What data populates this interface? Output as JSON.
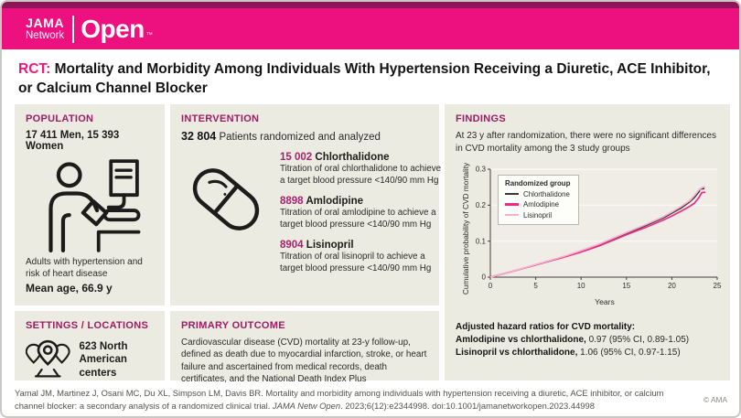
{
  "brand": {
    "jama": "JAMA",
    "network": "Network",
    "open": "Open",
    "tm": "™"
  },
  "title": {
    "tag": "RCT:",
    "text": "Mortality and Morbidity Among Individuals With Hypertension Receiving a Diuretic, ACE Inhibitor, or Calcium Channel Blocker"
  },
  "population": {
    "header": "POPULATION",
    "counts": "17 411 Men, 15 393 Women",
    "description": "Adults with hypertension and risk of heart disease",
    "mean_age": "Mean age, 66.9 y"
  },
  "intervention": {
    "header": "INTERVENTION",
    "total": "32 804",
    "total_label": "Patients randomized and analyzed",
    "drugs": [
      {
        "count": "15 002",
        "name": "Chlorthalidone",
        "description": "Titration of oral chlorthalidone to achieve a target blood pressure <140/90 mm Hg"
      },
      {
        "count": "8898",
        "name": "Amlodipine",
        "description": "Titration of oral amlodipine to achieve a target blood pressure <140/90 mm Hg"
      },
      {
        "count": "8904",
        "name": "Lisinopril",
        "description": "Titration of oral lisinopril to achieve a target blood pressure <140/90 mm Hg"
      }
    ]
  },
  "settings": {
    "header": "SETTINGS / LOCATIONS",
    "text": "623 North American centers"
  },
  "primary_outcome": {
    "header": "PRIMARY OUTCOME",
    "text": "Cardiovascular disease (CVD) mortality at 23-y follow-up, defined as death due to myocardial infarction, stroke, or heart failure and ascertained from medical records, death certificates, and the National Death Index Plus"
  },
  "findings": {
    "header": "FINDINGS",
    "summary": "At 23 y after randomization, there were no significant differences in CVD mortality among the 3 study groups",
    "hazard_heading": "Adjusted hazard ratios for CVD mortality:",
    "hazard_lines": [
      {
        "bold": "Amlodipine vs chlorthalidone,",
        "rest": "0.97 (95% CI, 0.89-1.05)"
      },
      {
        "bold": "Lisinopril vs chlorthalidone,",
        "rest": "1.06 (95% CI, 0.97-1.15)"
      }
    ]
  },
  "chart_data": {
    "type": "line",
    "title": "",
    "xlabel": "Years",
    "ylabel": "Cumulative probability of CVD mortality",
    "xlim": [
      0,
      25
    ],
    "ylim": [
      0,
      0.3
    ],
    "xticks": [
      0,
      5,
      10,
      15,
      20,
      25
    ],
    "yticks": [
      0,
      0.1,
      0.2,
      0.3
    ],
    "grid": true,
    "legend_title": "Randomized group",
    "legend_position": "top-left",
    "series": [
      {
        "name": "Chlorthalidone",
        "color": "#3a3837",
        "points": [
          [
            0,
            0
          ],
          [
            2,
            0.013
          ],
          [
            5,
            0.034
          ],
          [
            8,
            0.056
          ],
          [
            10,
            0.072
          ],
          [
            12,
            0.09
          ],
          [
            15,
            0.122
          ],
          [
            17,
            0.142
          ],
          [
            19,
            0.164
          ],
          [
            20,
            0.178
          ],
          [
            21,
            0.192
          ],
          [
            22,
            0.21
          ],
          [
            22.5,
            0.222
          ],
          [
            23,
            0.238
          ],
          [
            23.1,
            0.245
          ],
          [
            23.6,
            0.246
          ]
        ]
      },
      {
        "name": "Amlodipine",
        "color": "#ee2a88",
        "points": [
          [
            0,
            0
          ],
          [
            2,
            0.013
          ],
          [
            5,
            0.034
          ],
          [
            8,
            0.055
          ],
          [
            10,
            0.07
          ],
          [
            12,
            0.087
          ],
          [
            15,
            0.118
          ],
          [
            17,
            0.137
          ],
          [
            19,
            0.158
          ],
          [
            20,
            0.17
          ],
          [
            21,
            0.183
          ],
          [
            22,
            0.197
          ],
          [
            22.5,
            0.206
          ],
          [
            23,
            0.222
          ],
          [
            23.3,
            0.235
          ],
          [
            23.7,
            0.236
          ]
        ]
      },
      {
        "name": "Lisinopril",
        "color": "#f7b1ce",
        "points": [
          [
            0,
            0
          ],
          [
            2,
            0.013
          ],
          [
            5,
            0.035
          ],
          [
            8,
            0.057
          ],
          [
            10,
            0.074
          ],
          [
            12,
            0.092
          ],
          [
            15,
            0.124
          ],
          [
            17,
            0.145
          ],
          [
            19,
            0.167
          ],
          [
            20,
            0.181
          ],
          [
            21,
            0.196
          ],
          [
            22,
            0.213
          ],
          [
            22.5,
            0.227
          ],
          [
            23,
            0.243
          ],
          [
            23.4,
            0.25
          ],
          [
            23.7,
            0.251
          ]
        ]
      }
    ]
  },
  "footer": {
    "citation_1": "Yamal JM, Martinez J, Osani MC, Du XL, Simpson LM, Davis BR. Mortality and morbidity among individuals with hypertension receiving a diuretic, ACE inhibitor, or calcium channel blocker: a secondary analysis of a randomized clinical trial.",
    "journal": "JAMA Netw Open",
    "citation_2": ". 2023;6(12):e2344998. doi:10.1001/jamanetworkopen.2023.44998",
    "copyright": "© AMA"
  }
}
